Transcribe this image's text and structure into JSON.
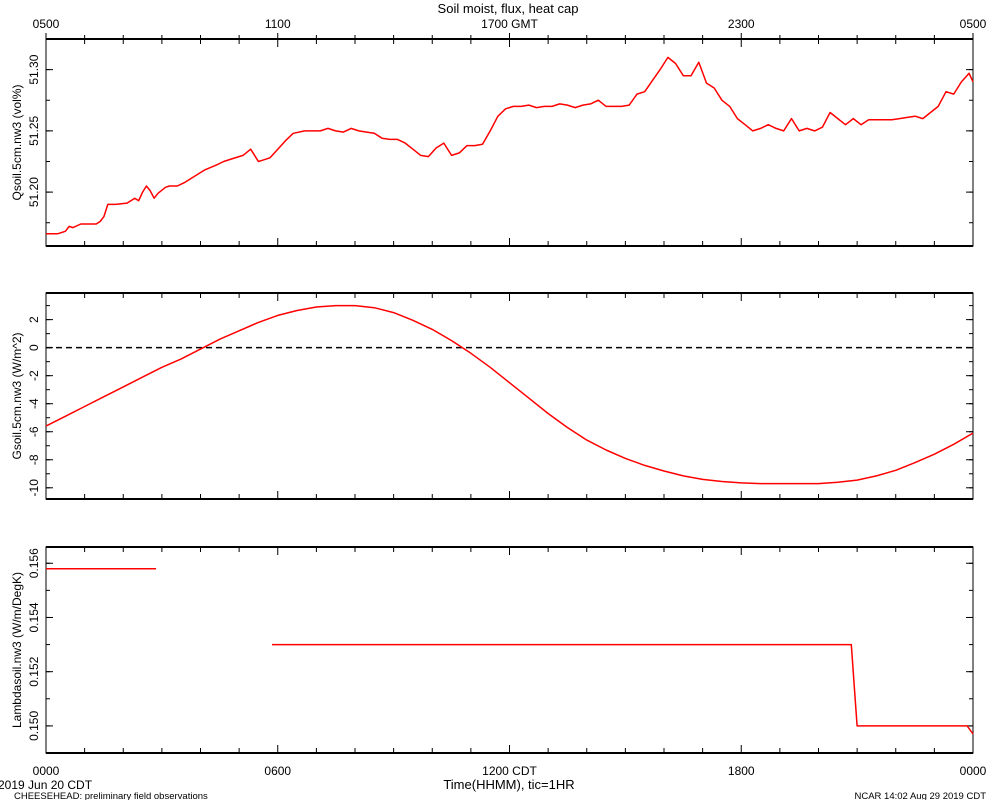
{
  "title": "Soil moist, flux, heat cap",
  "top_axis_ticks": [
    "0500",
    "1100",
    "1700 GMT",
    "2300",
    "0500"
  ],
  "bottom_axis_ticks": [
    "0000",
    "0600",
    "1200 CDT",
    "1800",
    "0000"
  ],
  "xlabel": "Time(HHMM), tic=1HR",
  "start_date": "2019 Jun 20 CDT",
  "footer_left": "CHEESEHEAD: preliminary field observations",
  "footer_right": "NCAR 14:02 Aug 29 2019 CDT",
  "colors": {
    "series": "#ff0000",
    "axes": "#000000"
  },
  "chart_data": [
    {
      "type": "line",
      "ylabel": "Qsoil.5cm.nw3 (vol%)",
      "ylim": [
        51.156,
        51.325
      ],
      "yticks": [
        51.2,
        51.25,
        51.3
      ],
      "ytick_labels": [
        "51.20",
        "51.25",
        "51.30"
      ],
      "xlim": [
        0,
        24
      ],
      "series": [
        {
          "x": [
            0,
            0.3,
            0.5,
            0.6,
            0.7,
            0.9,
            1.0,
            1.3,
            1.4,
            1.5,
            1.6,
            1.8,
            2.1,
            2.3,
            2.4,
            2.5,
            2.6,
            2.7,
            2.8,
            2.9,
            3.1,
            3.2,
            3.4,
            3.6,
            3.8,
            4.1,
            4.4,
            4.6,
            4.8,
            5.1,
            5.3,
            5.5,
            5.6,
            5.8,
            6.0,
            6.2,
            6.4,
            6.7,
            6.9,
            7.1,
            7.3,
            7.5,
            7.7,
            7.9,
            8.1,
            8.3,
            8.5,
            8.7,
            8.9,
            9.1,
            9.3,
            9.5,
            9.7,
            9.9,
            10.1,
            10.3,
            10.5,
            10.7,
            10.9,
            11.1,
            11.3,
            11.5,
            11.7,
            11.9,
            12.1,
            12.3,
            12.5,
            12.7,
            12.9,
            13.1,
            13.3,
            13.5,
            13.7,
            13.9,
            14.1,
            14.3,
            14.5,
            14.7,
            14.9,
            15.1,
            15.3,
            15.5,
            15.7,
            15.9,
            16.1,
            16.3,
            16.5,
            16.7,
            16.9,
            17.1,
            17.3,
            17.5,
            17.7,
            17.9,
            18.1,
            18.3,
            18.5,
            18.7,
            18.9,
            19.1,
            19.3,
            19.5,
            19.7,
            19.9,
            20.1,
            20.3,
            20.5,
            20.7,
            20.9,
            21.1,
            21.3,
            21.5,
            21.7,
            21.9,
            22.1,
            22.3,
            22.5,
            22.7,
            22.9,
            23.1,
            23.3,
            23.5,
            23.7,
            23.9,
            24.0
          ],
          "y": [
            51.166,
            51.166,
            51.168,
            51.172,
            51.171,
            51.174,
            51.174,
            51.174,
            51.176,
            51.18,
            51.19,
            51.19,
            51.191,
            51.195,
            51.193,
            51.2,
            51.205,
            51.201,
            51.195,
            51.199,
            51.204,
            51.205,
            51.205,
            51.208,
            51.212,
            51.218,
            51.222,
            51.225,
            51.227,
            51.23,
            51.235,
            51.225,
            51.226,
            51.228,
            51.235,
            51.242,
            51.248,
            51.25,
            51.25,
            51.25,
            51.252,
            51.25,
            51.249,
            51.252,
            51.25,
            51.249,
            51.248,
            51.244,
            51.243,
            51.243,
            51.24,
            51.235,
            51.23,
            51.229,
            51.236,
            51.24,
            51.23,
            51.232,
            51.238,
            51.238,
            51.239,
            51.25,
            51.262,
            51.268,
            51.27,
            51.27,
            51.271,
            51.269,
            51.27,
            51.27,
            51.272,
            51.271,
            51.269,
            51.271,
            51.272,
            51.275,
            51.27,
            51.27,
            51.27,
            51.271,
            51.28,
            51.282,
            51.291,
            51.3,
            51.31,
            51.305,
            51.295,
            51.295,
            51.306,
            51.289,
            51.285,
            51.275,
            51.27,
            51.26,
            51.255,
            51.25,
            51.252,
            51.255,
            51.252,
            51.25,
            51.26,
            51.25,
            51.252,
            51.25,
            51.253,
            51.265,
            51.26,
            51.255,
            51.26,
            51.255,
            51.259,
            51.259,
            51.259,
            51.259,
            51.26,
            51.261,
            51.262,
            51.26,
            51.265,
            51.27,
            51.282,
            51.28,
            51.29,
            51.297,
            51.29
          ]
        }
      ]
    },
    {
      "type": "line",
      "ylabel": "Gsoil.5cm.nw3 (W/m^2)",
      "ylim": [
        -10.8,
        3.9
      ],
      "yticks": [
        2,
        0,
        -2,
        -4,
        -6,
        -8,
        -10
      ],
      "ytick_labels": [
        "2",
        "0",
        "-2",
        "-4",
        "-6",
        "-8",
        "-10"
      ],
      "zero_line": true,
      "xlim": [
        0,
        24
      ],
      "series": [
        {
          "x": [
            0,
            0.5,
            1,
            1.5,
            2,
            2.5,
            3,
            3.5,
            4,
            4.5,
            5,
            5.5,
            6,
            6.5,
            7,
            7.5,
            8,
            8.5,
            9,
            9.5,
            10,
            10.5,
            11,
            11.5,
            12,
            12.5,
            13,
            13.5,
            14,
            14.5,
            15,
            15.5,
            16,
            16.5,
            17,
            17.5,
            18,
            18.5,
            19,
            19.5,
            20,
            20.5,
            21,
            21.5,
            22,
            22.5,
            23,
            23.5,
            24
          ],
          "y": [
            -5.6,
            -4.9,
            -4.2,
            -3.5,
            -2.8,
            -2.1,
            -1.4,
            -0.8,
            -0.1,
            0.6,
            1.2,
            1.8,
            2.3,
            2.65,
            2.9,
            3.0,
            3.0,
            2.85,
            2.5,
            1.95,
            1.3,
            0.5,
            -0.4,
            -1.4,
            -2.5,
            -3.6,
            -4.7,
            -5.7,
            -6.6,
            -7.3,
            -7.9,
            -8.4,
            -8.8,
            -9.15,
            -9.4,
            -9.55,
            -9.65,
            -9.7,
            -9.7,
            -9.7,
            -9.7,
            -9.6,
            -9.45,
            -9.15,
            -8.75,
            -8.2,
            -7.6,
            -6.9,
            -6.1
          ]
        }
      ]
    },
    {
      "type": "line",
      "ylabel": "Lambdasoil.nw3 (W/m/DegK)",
      "ylim": [
        0.149,
        0.1566
      ],
      "yticks": [
        0.15,
        0.152,
        0.154,
        0.156
      ],
      "ytick_labels": [
        "0.150",
        "0.152",
        "0.154",
        "0.156"
      ],
      "xlim": [
        0,
        24
      ],
      "segments": [
        {
          "x": [
            0,
            2.85
          ],
          "y": [
            0.1558,
            0.1558
          ]
        },
        {
          "x": [
            5.85,
            20.85,
            21.0,
            23.85,
            24.0
          ],
          "y": [
            0.153,
            0.153,
            0.15,
            0.15,
            0.1497
          ]
        }
      ]
    }
  ]
}
